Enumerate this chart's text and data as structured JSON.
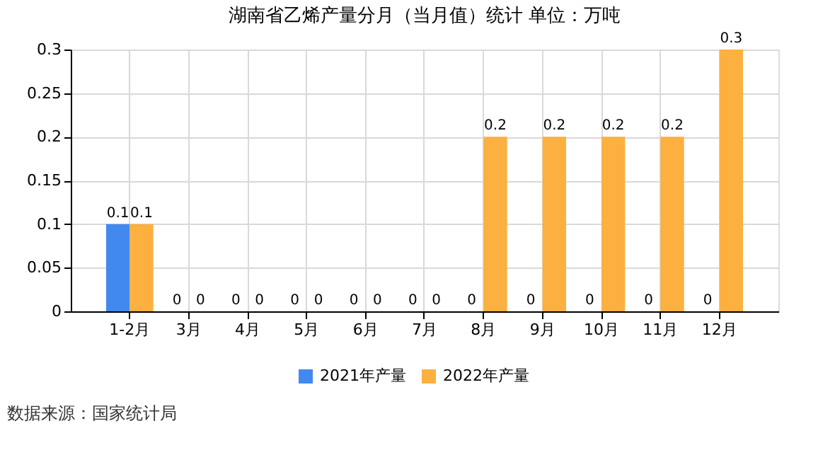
{
  "chart_data": {
    "type": "bar",
    "title": "湖南省乙烯产量分月（当月值）统计  单位：万吨",
    "categories": [
      "1-2月",
      "3月",
      "4月",
      "5月",
      "6月",
      "7月",
      "8月",
      "9月",
      "10月",
      "11月",
      "12月"
    ],
    "series": [
      {
        "name": "2021年产量",
        "color": "#4189ee",
        "values": [
          0.1,
          0,
          0,
          0,
          0,
          0,
          0,
          0,
          0,
          0,
          0
        ]
      },
      {
        "name": "2022年产量",
        "color": "#fbb040",
        "values": [
          0.1,
          0,
          0,
          0,
          0,
          0,
          0.2,
          0.2,
          0.2,
          0.2,
          0.3
        ]
      }
    ],
    "ylim": [
      0,
      0.3
    ],
    "yticks": [
      0,
      0.05,
      0.1,
      0.15,
      0.2,
      0.25,
      0.3
    ],
    "grid": true,
    "legend": "bottom",
    "data_labels": true,
    "annotations": [
      "数据来源：国家统计局"
    ]
  }
}
